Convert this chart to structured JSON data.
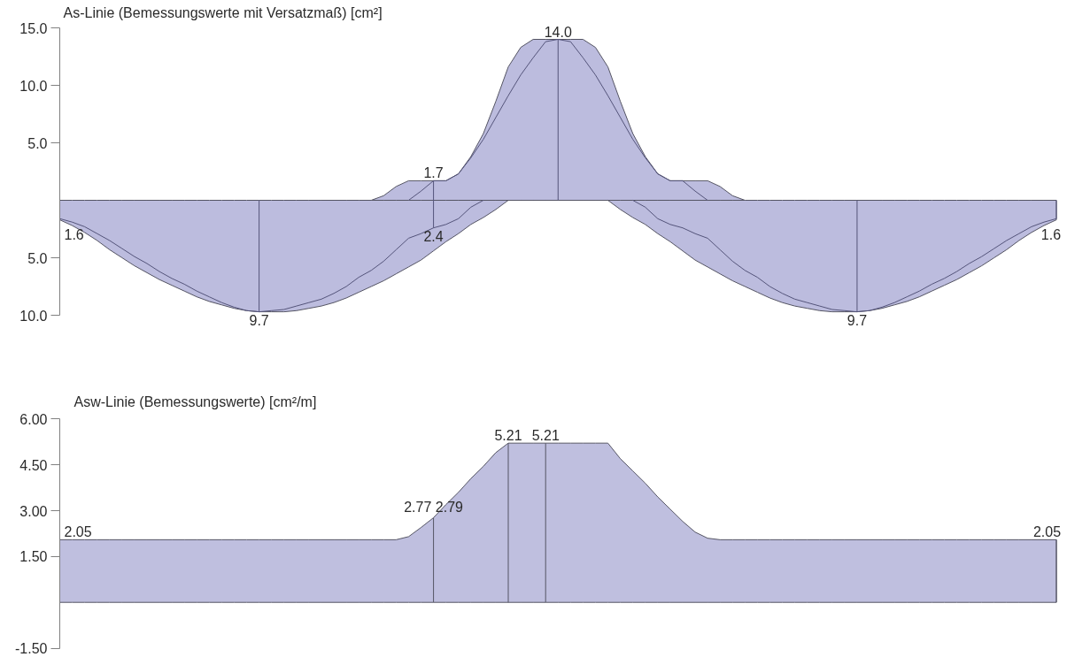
{
  "chart_data": [
    {
      "type": "area",
      "title": "As-Linie (Bemessungswerte mit Versatzmaß) [cm²]",
      "categories": [
        null,
        null,
        null,
        null,
        null,
        null,
        null,
        null,
        null,
        null,
        null,
        null,
        null,
        null,
        null,
        null,
        null,
        null,
        null,
        null,
        null,
        null,
        null,
        null,
        null,
        null,
        null,
        null,
        null,
        null,
        null,
        null,
        null,
        null,
        null,
        null,
        null,
        null,
        null,
        null,
        null,
        null,
        null,
        null,
        null,
        null,
        null,
        null,
        null,
        null,
        null,
        null,
        null,
        null,
        null,
        null,
        null,
        null,
        null,
        null,
        null,
        null,
        null,
        null,
        null,
        null,
        null,
        null,
        null,
        null,
        null,
        null,
        null,
        null,
        null,
        null,
        null,
        null,
        null,
        null,
        null
      ],
      "series": [
        {
          "color": "#bcbcde",
          "values": [
            null,
            null,
            null,
            null,
            null,
            null,
            null,
            null,
            null,
            null,
            null,
            null,
            null,
            null,
            null,
            null,
            null,
            null,
            null,
            null,
            null,
            null,
            null,
            null,
            null,
            0,
            0.4,
            1.2,
            1.7,
            1.7,
            1.7,
            1.7,
            2.3,
            3.8,
            5.8,
            8.6,
            11.6,
            13.3,
            14.0,
            14.0,
            14.0,
            14.0,
            14.0,
            13.3,
            11.6,
            8.6,
            5.8,
            3.8,
            2.3,
            1.7,
            1.7,
            1.7,
            1.7,
            1.2,
            0.4,
            0,
            null,
            null,
            null,
            null,
            null,
            null,
            null,
            null,
            null,
            null,
            null,
            null,
            null,
            null,
            null,
            null,
            null,
            null,
            null,
            null,
            null,
            null,
            null,
            null,
            null
          ]
        },
        {
          "axis": "y2",
          "color": "#bcbcde",
          "values": [
            1.7,
            2.2,
            2.8,
            3.5,
            4.3,
            5.0,
            5.7,
            6.3,
            6.9,
            7.4,
            7.9,
            8.4,
            8.8,
            9.1,
            9.4,
            9.6,
            9.7,
            9.7,
            9.7,
            9.6,
            9.4,
            9.2,
            8.9,
            8.5,
            8.0,
            7.5,
            7.0,
            6.4,
            5.8,
            5.2,
            4.4,
            3.6,
            2.9,
            2.1,
            1.5,
            0.8,
            0,
            0,
            0,
            0,
            0,
            0,
            0,
            0,
            0,
            0.8,
            1.5,
            2.1,
            2.9,
            3.6,
            4.4,
            5.2,
            5.8,
            6.4,
            7.0,
            7.5,
            8.0,
            8.5,
            8.9,
            9.2,
            9.4,
            9.6,
            9.7,
            9.7,
            9.7,
            9.6,
            9.4,
            9.1,
            8.8,
            8.4,
            7.9,
            7.4,
            6.9,
            6.3,
            5.7,
            5.0,
            4.3,
            3.5,
            2.8,
            2.2,
            1.7
          ]
        },
        {
          "type": "line",
          "color": "#54547a",
          "values": [
            null,
            null,
            null,
            null,
            null,
            null,
            null,
            null,
            null,
            null,
            null,
            null,
            null,
            null,
            null,
            null,
            null,
            null,
            null,
            null,
            null,
            null,
            null,
            null,
            null,
            null,
            null,
            null,
            0,
            0.8,
            1.7,
            1.7,
            2.3,
            3.7,
            5.3,
            7.2,
            9.1,
            10.9,
            12.4,
            13.8,
            14.0,
            13.8,
            12.4,
            10.9,
            9.1,
            7.2,
            5.3,
            3.7,
            2.3,
            1.7,
            1.7,
            0.8,
            0,
            null,
            null,
            null,
            null,
            null,
            null,
            null,
            null,
            null,
            null,
            null,
            null,
            null,
            null,
            null,
            null,
            null,
            null,
            null,
            null,
            null,
            null,
            null,
            null,
            null,
            null,
            null,
            null
          ],
          "value_labels": [
            null,
            null,
            null,
            null,
            null,
            null,
            null,
            null,
            null,
            null,
            null,
            null,
            null,
            null,
            null,
            null,
            null,
            null,
            null,
            null,
            null,
            null,
            null,
            null,
            null,
            null,
            null,
            null,
            null,
            null,
            "1.7",
            null,
            null,
            null,
            null,
            null,
            null,
            null,
            null,
            null,
            "14.0",
            null,
            null,
            null,
            null,
            null,
            null,
            null,
            null,
            null,
            null,
            null,
            null,
            null,
            null,
            null,
            null,
            null,
            null,
            null,
            null,
            null,
            null,
            null,
            null,
            null,
            null,
            null,
            null,
            null,
            null,
            null,
            null,
            null,
            null,
            null,
            null,
            null,
            null,
            null,
            null
          ]
        },
        {
          "type": "line",
          "axis": "y2",
          "color": "#54547a",
          "values": [
            1.6,
            1.9,
            2.3,
            2.9,
            3.5,
            4.2,
            4.9,
            5.5,
            6.2,
            6.8,
            7.3,
            7.9,
            8.4,
            8.9,
            9.3,
            9.6,
            9.7,
            9.6,
            9.5,
            9.2,
            8.9,
            8.6,
            8.1,
            7.5,
            6.7,
            6.1,
            5.3,
            4.3,
            3.3,
            2.9,
            2.4,
            2.1,
            1.6,
            0.6,
            0,
            null,
            null,
            null,
            null,
            null,
            null,
            null,
            null,
            null,
            null,
            null,
            0,
            0.6,
            1.6,
            2.1,
            2.4,
            2.9,
            3.3,
            4.3,
            5.3,
            6.1,
            6.7,
            7.5,
            8.1,
            8.6,
            8.9,
            9.2,
            9.5,
            9.6,
            9.7,
            9.6,
            9.3,
            8.9,
            8.4,
            7.9,
            7.3,
            6.8,
            6.2,
            5.5,
            4.9,
            4.2,
            3.5,
            2.9,
            2.3,
            1.9,
            1.6
          ],
          "value_labels": [
            "1.6",
            null,
            null,
            null,
            null,
            null,
            null,
            null,
            null,
            null,
            null,
            null,
            null,
            null,
            null,
            null,
            "9.7",
            null,
            null,
            null,
            null,
            null,
            null,
            null,
            null,
            null,
            null,
            null,
            null,
            null,
            "2.4",
            null,
            null,
            null,
            null,
            null,
            null,
            null,
            null,
            null,
            null,
            null,
            null,
            null,
            null,
            null,
            null,
            null,
            null,
            null,
            null,
            null,
            null,
            null,
            null,
            null,
            null,
            null,
            null,
            null,
            null,
            null,
            null,
            null,
            "9.7",
            null,
            null,
            null,
            null,
            null,
            null,
            null,
            null,
            null,
            null,
            null,
            null,
            null,
            null,
            null,
            "1.6"
          ]
        }
      ],
      "ylim": [
        -10,
        15
      ],
      "yticks": [
        {
          "value": 15,
          "label": "15.0"
        },
        {
          "value": 10,
          "label": "10.0"
        },
        {
          "value": 5,
          "label": "5.0"
        }
      ],
      "y2lim": [
        10,
        -15
      ],
      "y2ticks": [
        {
          "value": 5,
          "label": "5.0"
        },
        {
          "value": 10,
          "label": "10.0"
        }
      ],
      "tick_labels": "y",
      "grid": false
    },
    {
      "type": "area",
      "title": "Asw-Linie (Bemessungswerte) [cm²/m]",
      "categories": [
        null,
        null,
        null,
        null,
        null,
        null,
        null,
        null,
        null,
        null,
        null,
        null,
        null,
        null,
        null,
        null,
        null,
        null,
        null,
        null,
        null,
        null,
        null,
        null,
        null,
        null,
        null,
        null,
        null,
        null,
        null,
        null,
        null,
        null,
        null,
        null,
        null,
        null,
        null,
        null,
        null,
        null,
        null,
        null,
        null,
        null,
        null,
        null,
        null,
        null,
        null,
        null,
        null,
        null,
        null,
        null,
        null,
        null,
        null,
        null,
        null,
        null,
        null,
        null,
        null,
        null,
        null,
        null,
        null,
        null,
        null,
        null,
        null,
        null,
        null,
        null,
        null,
        null,
        null,
        null,
        null
      ],
      "series": [
        {
          "color": "#bfbfdf",
          "values": [
            2.05,
            2.05,
            2.05,
            2.05,
            2.05,
            2.05,
            2.05,
            2.05,
            2.05,
            2.05,
            2.05,
            2.05,
            2.05,
            2.05,
            2.05,
            2.05,
            2.05,
            2.05,
            2.05,
            2.05,
            2.05,
            2.05,
            2.05,
            2.05,
            2.05,
            2.05,
            2.05,
            2.05,
            2.15,
            2.45,
            2.77,
            3.2,
            3.6,
            4.05,
            4.45,
            4.9,
            5.21,
            5.21,
            5.21,
            5.21,
            5.21,
            5.21,
            5.21,
            5.21,
            5.21,
            4.7,
            4.3,
            3.9,
            3.45,
            3.05,
            2.65,
            2.3,
            2.1,
            2.05,
            2.05,
            2.05,
            2.05,
            2.05,
            2.05,
            2.05,
            2.05,
            2.05,
            2.05,
            2.05,
            2.05,
            2.05,
            2.05,
            2.05,
            2.05,
            2.05,
            2.05,
            2.05,
            2.05,
            2.05,
            2.05,
            2.05,
            2.05,
            2.05,
            2.05,
            2.05,
            2.05
          ],
          "value_labels": [
            "2.05",
            null,
            null,
            null,
            null,
            null,
            null,
            null,
            null,
            null,
            null,
            null,
            null,
            null,
            null,
            null,
            null,
            null,
            null,
            null,
            null,
            null,
            null,
            null,
            null,
            null,
            null,
            null,
            null,
            null,
            "2.77 2.79",
            null,
            null,
            null,
            null,
            null,
            "5.21",
            null,
            null,
            "5.21",
            null,
            null,
            null,
            null,
            null,
            null,
            null,
            null,
            null,
            null,
            null,
            null,
            null,
            null,
            null,
            null,
            null,
            null,
            null,
            null,
            null,
            null,
            null,
            null,
            null,
            null,
            null,
            null,
            null,
            null,
            null,
            null,
            null,
            null,
            null,
            null,
            null,
            null,
            null,
            null,
            "2.05"
          ]
        }
      ],
      "ylim": [
        -1.5,
        6
      ],
      "yticks": [
        {
          "value": 6,
          "label": "6.00"
        },
        {
          "value": 4.5,
          "label": "4.50"
        },
        {
          "value": 3,
          "label": "3.00"
        },
        {
          "value": 1.5,
          "label": "1.50"
        },
        {
          "value": -1.5,
          "label": "-1.50"
        }
      ],
      "tick_labels": "y",
      "grid": false
    }
  ]
}
